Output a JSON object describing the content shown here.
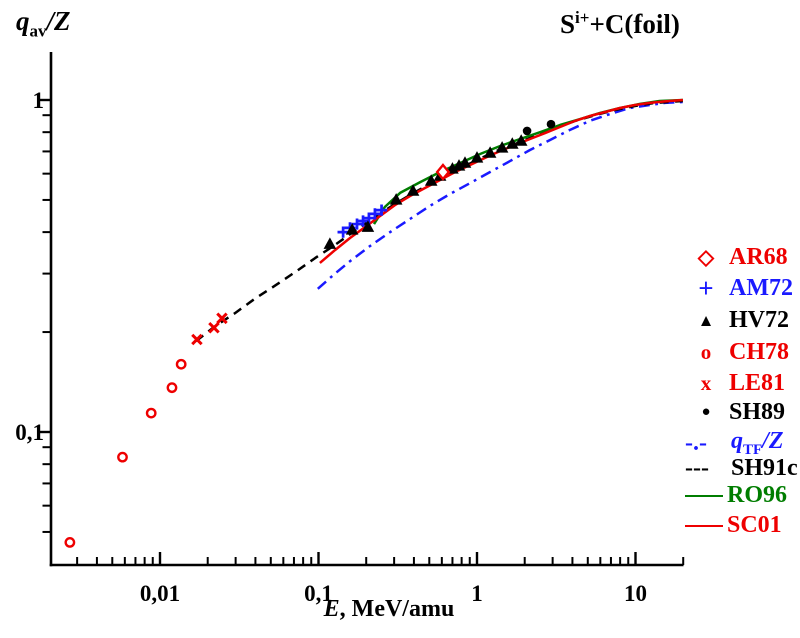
{
  "header": {
    "title_base": "S",
    "title_sup": "i+",
    "title_rest": "+C(foil)"
  },
  "axes": {
    "y_label_main": "q",
    "y_label_sub": "av",
    "y_label_rest": "/Z",
    "x_label_main": "E",
    "x_label_rest": ", MeV/amu"
  },
  "chart_data": {
    "type": "scatter",
    "title": "S(i+)+C(foil)",
    "xlabel": "E, MeV/amu",
    "ylabel": "q_av/Z",
    "x_scale": "log",
    "y_scale": "log",
    "grid": false,
    "legend_position": "right-outside",
    "x_axis": {
      "range": [
        0.002,
        20
      ],
      "major_ticks": [
        {
          "value": 0.01,
          "label": "0,01"
        },
        {
          "value": 0.1,
          "label": "0,1"
        },
        {
          "value": 1,
          "label": "1"
        },
        {
          "value": 10,
          "label": "10"
        }
      ],
      "minor_ticks": [
        0.003,
        0.004,
        0.005,
        0.006,
        0.007,
        0.008,
        0.009,
        0.02,
        0.03,
        0.04,
        0.05,
        0.06,
        0.07,
        0.08,
        0.09,
        0.2,
        0.3,
        0.4,
        0.5,
        0.6,
        0.7,
        0.8,
        0.9,
        2,
        3,
        4,
        5,
        6,
        7,
        8,
        9,
        20
      ]
    },
    "y_axis": {
      "range": [
        0.04,
        1.4
      ],
      "major_ticks": [
        {
          "value": 1,
          "label": "1"
        },
        {
          "value": 0.1,
          "label": "0,1"
        }
      ],
      "minor_ticks": [
        0.9,
        0.8,
        0.7,
        0.6,
        0.5,
        0.4,
        0.3,
        0.2,
        0.09,
        0.08,
        0.07,
        0.06,
        0.05
      ]
    },
    "series": [
      {
        "name": "qTF/Z",
        "kind": "line",
        "style": "dashdot",
        "color": "#1a1aff",
        "points": [
          [
            0.099,
            0.27
          ],
          [
            0.127,
            0.3
          ],
          [
            0.158,
            0.327
          ],
          [
            0.211,
            0.363
          ],
          [
            0.283,
            0.4
          ],
          [
            0.378,
            0.438
          ],
          [
            0.506,
            0.48
          ],
          [
            0.676,
            0.521
          ],
          [
            0.904,
            0.562
          ],
          [
            1.21,
            0.607
          ],
          [
            1.61,
            0.654
          ],
          [
            2.16,
            0.707
          ],
          [
            2.88,
            0.757
          ],
          [
            3.85,
            0.812
          ],
          [
            5.14,
            0.865
          ],
          [
            6.87,
            0.907
          ],
          [
            9.18,
            0.946
          ],
          [
            12.3,
            0.966
          ],
          [
            15.3,
            0.98
          ],
          [
            19.9,
            0.986
          ]
        ]
      },
      {
        "name": "SH91c",
        "kind": "line",
        "style": "dashed",
        "color": "#000000",
        "points": [
          [
            0.0169,
            0.188
          ],
          [
            0.0222,
            0.208
          ],
          [
            0.0297,
            0.228
          ],
          [
            0.0397,
            0.252
          ],
          [
            0.0532,
            0.276
          ],
          [
            0.0711,
            0.303
          ],
          [
            0.0952,
            0.334
          ],
          [
            0.127,
            0.366
          ],
          [
            0.17,
            0.404
          ],
          [
            0.227,
            0.444
          ],
          [
            0.303,
            0.486
          ],
          [
            0.407,
            0.528
          ],
          [
            0.544,
            0.57
          ],
          [
            0.727,
            0.612
          ],
          [
            0.973,
            0.655
          ],
          [
            1.3,
            0.7
          ],
          [
            1.74,
            0.737
          ],
          [
            2.33,
            0.779
          ],
          [
            3.11,
            0.823
          ],
          [
            4.15,
            0.865
          ],
          [
            5.55,
            0.9
          ],
          [
            7.42,
            0.933
          ],
          [
            9.92,
            0.959
          ],
          [
            13.3,
            0.98
          ],
          [
            19.9,
            0.993
          ]
        ]
      },
      {
        "name": "RO96",
        "kind": "line",
        "style": "solid",
        "color": "#007d00",
        "points": [
          [
            0.224,
            0.423
          ],
          [
            0.262,
            0.476
          ],
          [
            0.327,
            0.525
          ],
          [
            0.438,
            0.566
          ],
          [
            0.585,
            0.607
          ],
          [
            0.784,
            0.646
          ],
          [
            1.05,
            0.688
          ],
          [
            1.4,
            0.727
          ],
          [
            1.87,
            0.763
          ],
          [
            2.5,
            0.8
          ],
          [
            3.34,
            0.841
          ],
          [
            4.47,
            0.876
          ],
          [
            5.97,
            0.914
          ],
          [
            7.98,
            0.946
          ],
          [
            10.7,
            0.973
          ],
          [
            14.2,
            0.993
          ],
          [
            19.9,
            1.0
          ]
        ]
      },
      {
        "name": "SC01",
        "kind": "line",
        "style": "solid",
        "color": "#ee0000",
        "points": [
          [
            0.102,
            0.323
          ],
          [
            0.127,
            0.353
          ],
          [
            0.158,
            0.384
          ],
          [
            0.196,
            0.414
          ],
          [
            0.244,
            0.447
          ],
          [
            0.303,
            0.482
          ],
          [
            0.378,
            0.514
          ],
          [
            0.47,
            0.543
          ],
          [
            0.585,
            0.574
          ],
          [
            0.727,
            0.607
          ],
          [
            0.904,
            0.637
          ],
          [
            1.12,
            0.669
          ],
          [
            1.4,
            0.702
          ],
          [
            1.74,
            0.732
          ],
          [
            2.16,
            0.763
          ],
          [
            2.69,
            0.795
          ],
          [
            3.34,
            0.829
          ],
          [
            4.15,
            0.865
          ],
          [
            5.16,
            0.895
          ],
          [
            6.42,
            0.92
          ],
          [
            7.98,
            0.946
          ],
          [
            9.92,
            0.966
          ],
          [
            12.3,
            0.98
          ],
          [
            15.3,
            0.99
          ],
          [
            19.9,
            1.0
          ]
        ]
      },
      {
        "name": "CH78",
        "kind": "marker",
        "marker": "circle-open",
        "color": "#ee0000",
        "points": [
          [
            0.0027,
            0.0465
          ],
          [
            0.0058,
            0.084
          ],
          [
            0.0088,
            0.114
          ],
          [
            0.0119,
            0.136
          ],
          [
            0.0136,
            0.16
          ]
        ]
      },
      {
        "name": "LE81",
        "kind": "marker",
        "marker": "x",
        "color": "#ee0000",
        "points": [
          [
            0.0171,
            0.19
          ],
          [
            0.0219,
            0.206
          ],
          [
            0.0246,
            0.22
          ]
        ]
      },
      {
        "name": "AM72",
        "kind": "marker",
        "marker": "plus",
        "color": "#1a1aff",
        "points": [
          [
            0.143,
            0.4
          ],
          [
            0.158,
            0.412
          ],
          [
            0.175,
            0.423
          ],
          [
            0.191,
            0.432
          ],
          [
            0.208,
            0.441
          ],
          [
            0.227,
            0.454
          ],
          [
            0.25,
            0.466
          ]
        ]
      },
      {
        "name": "HV72",
        "kind": "marker",
        "marker": "triangle-filled",
        "color": "#000000",
        "points": [
          [
            0.118,
            0.368
          ],
          [
            0.163,
            0.406
          ],
          [
            0.205,
            0.414
          ],
          [
            0.309,
            0.5
          ],
          [
            0.395,
            0.532
          ],
          [
            0.514,
            0.57
          ],
          [
            0.585,
            0.59
          ],
          [
            0.7,
            0.62
          ],
          [
            0.77,
            0.633
          ],
          [
            0.84,
            0.646
          ],
          [
            1.0,
            0.669
          ],
          [
            1.21,
            0.692
          ],
          [
            1.44,
            0.717
          ],
          [
            1.67,
            0.737
          ],
          [
            1.9,
            0.752
          ]
        ]
      },
      {
        "name": "AR68",
        "kind": "marker",
        "marker": "diamond-open",
        "color": "#ee0000",
        "points": [
          [
            0.61,
            0.607
          ]
        ]
      },
      {
        "name": "SH89",
        "kind": "marker",
        "marker": "circle-filled",
        "color": "#000000",
        "points": [
          [
            2.07,
            0.807
          ],
          [
            2.93,
            0.846
          ]
        ]
      }
    ]
  },
  "legend": {
    "items": [
      {
        "symbol_char": "◇",
        "label": "AR68",
        "color": "#ee0000"
      },
      {
        "symbol_char": "+",
        "label": "AM72",
        "color": "#1a1aff"
      },
      {
        "symbol_char": "▲",
        "label": "HV72",
        "color": "#000000"
      },
      {
        "symbol_char": "o",
        "label": "CH78",
        "color": "#ee0000"
      },
      {
        "symbol_char": "x",
        "label": "LE81",
        "color": "#ee0000"
      },
      {
        "symbol_char": "●",
        "label": "SH89",
        "color": "#000000"
      },
      {
        "symbol_char": "-.-",
        "label_main": "q",
        "label_sub": "TF",
        "label_rest": "/Z",
        "color": "#1a1aff"
      },
      {
        "symbol_char": "---",
        "label": "SH91c",
        "color": "#000000"
      },
      {
        "label": "RO96",
        "color": "#007d00",
        "line_sample": "solid"
      },
      {
        "label": "SC01",
        "color": "#ee0000",
        "line_sample": "solid"
      }
    ]
  }
}
